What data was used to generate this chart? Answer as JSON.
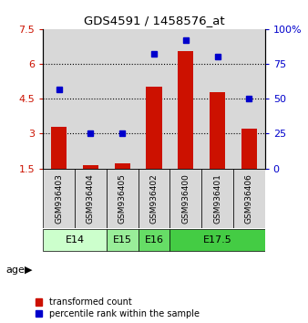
{
  "title": "GDS4591 / 1458576_at",
  "samples": [
    "GSM936403",
    "GSM936404",
    "GSM936405",
    "GSM936402",
    "GSM936400",
    "GSM936401",
    "GSM936406"
  ],
  "bar_values": [
    3.3,
    1.65,
    1.7,
    5.0,
    6.55,
    4.8,
    3.2
  ],
  "dot_values_pct": [
    57,
    25,
    25,
    82,
    92,
    80,
    50
  ],
  "ylim_left": [
    1.5,
    7.5
  ],
  "ylim_right": [
    0,
    100
  ],
  "yticks_left": [
    1.5,
    3.0,
    4.5,
    6.0,
    7.5
  ],
  "ytick_labels_left": [
    "1.5",
    "3",
    "4.5",
    "6",
    "7.5"
  ],
  "yticks_right": [
    0,
    25,
    50,
    75,
    100
  ],
  "ytick_labels_right": [
    "0",
    "25",
    "50",
    "75",
    "100%"
  ],
  "bar_color": "#cc1100",
  "dot_color": "#0000cc",
  "bg_color": "#d8d8d8",
  "age_labels": [
    "E14",
    "E15",
    "E16",
    "E17.5"
  ],
  "age_colors": [
    "#ccffcc",
    "#99ee99",
    "#66dd66",
    "#44cc44"
  ],
  "age_span_starts": [
    0,
    2,
    3,
    4
  ],
  "age_span_ends": [
    2,
    3,
    4,
    7
  ],
  "gridline_yticks": [
    3.0,
    4.5,
    6.0
  ]
}
